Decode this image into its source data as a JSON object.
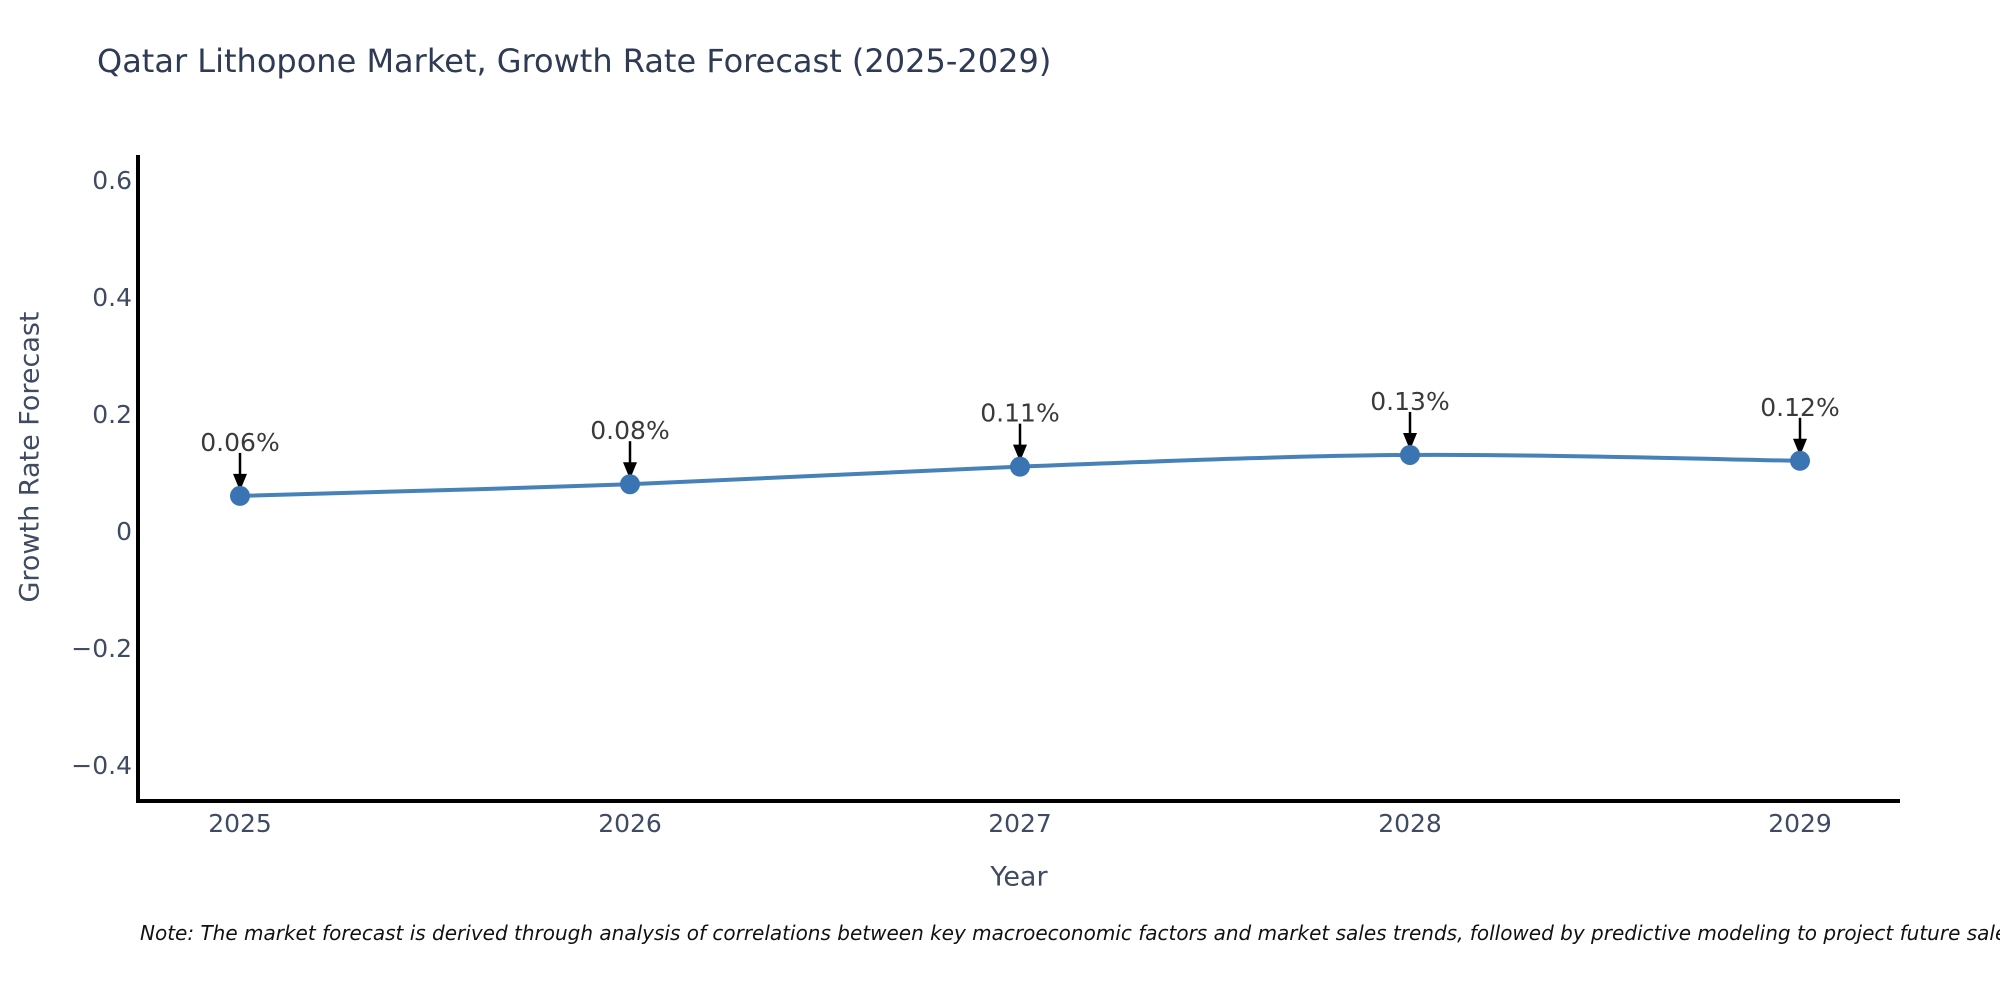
{
  "note": "Note: The market forecast is derived through analysis of correlations between key macroeconomic factors and market sales trends, followed by predictive modeling to project future sales.",
  "chart_data": {
    "type": "line",
    "title": "Qatar Lithopone Market, Growth Rate Forecast (2025-2029)",
    "xlabel": "Year",
    "ylabel": "Growth Rate Forecast",
    "x": [
      "2025",
      "2026",
      "2027",
      "2028",
      "2029"
    ],
    "y": [
      0.06,
      0.08,
      0.11,
      0.13,
      0.12
    ],
    "point_labels": [
      "0.06%",
      "0.08%",
      "0.11%",
      "0.13%",
      "0.12%"
    ],
    "ytick_values": [
      0.6,
      0.4,
      0.2,
      0,
      -0.2,
      -0.4
    ],
    "ytick_labels": [
      "0.6",
      "0.4",
      "0.2",
      "0",
      "−0.2",
      "−0.4"
    ],
    "ylim": [
      -0.46,
      0.64
    ],
    "grid": false,
    "legend_position": "none",
    "line_color": "#4682b8",
    "marker_color": "#3a74b2",
    "arrow_color": "#000000",
    "spine_color": "#000000"
  }
}
